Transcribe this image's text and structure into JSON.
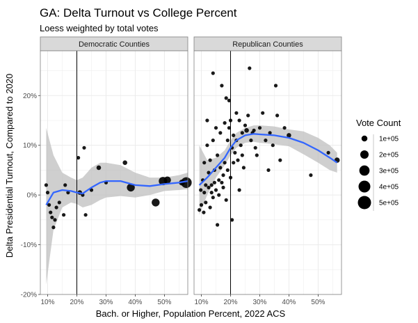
{
  "chart_data": {
    "type": "scatter",
    "title": "GA: Delta Turnout vs College Percent",
    "subtitle": "Loess weighted by total votes",
    "xlabel": "Bach. or Higher, Population Percent, 2022 ACS",
    "ylabel": "Delta Presidential Turnout, Compared to 2020",
    "xlim": [
      7.5,
      58
    ],
    "ylim": [
      -20,
      29
    ],
    "x_ticks": [
      10,
      20,
      30,
      40,
      50
    ],
    "x_tick_labels": [
      "10%",
      "20%",
      "30%",
      "40%",
      "50%"
    ],
    "y_ticks": [
      -20,
      -10,
      0,
      10,
      20
    ],
    "y_tick_labels": [
      "-20%",
      "-10%",
      "0%",
      "10%",
      "20%"
    ],
    "vline_x": 20,
    "legend": {
      "title": "Vote Count",
      "values": [
        100000,
        200000,
        300000,
        400000,
        500000
      ],
      "labels": [
        "1e+05",
        "2e+05",
        "3e+05",
        "4e+05",
        "5e+05"
      ]
    },
    "colors": {
      "points": "#000000",
      "smooth": "#3366FF",
      "ribbon": "#bfbfbf",
      "strip_bg": "#d9d9d9",
      "grid": "#ebebeb",
      "panel_border": "#7f7f7f"
    },
    "panels": [
      {
        "name": "Democratic Counties",
        "points": [
          [
            9.5,
            2.0,
            15000
          ],
          [
            10.0,
            0.5,
            12000
          ],
          [
            10.5,
            -2.0,
            15000
          ],
          [
            11.0,
            -3.5,
            10000
          ],
          [
            11.5,
            -4.5,
            10000
          ],
          [
            12.0,
            -6.5,
            10000
          ],
          [
            12.5,
            -5.0,
            10000
          ],
          [
            13.0,
            -2.5,
            12000
          ],
          [
            14.0,
            -1.5,
            12000
          ],
          [
            15.5,
            -4.0,
            12000
          ],
          [
            16.0,
            2.0,
            15000
          ],
          [
            17.0,
            0.5,
            12000
          ],
          [
            20.5,
            7.5,
            20000
          ],
          [
            21.0,
            0.5,
            60000
          ],
          [
            22.0,
            0.0,
            25000
          ],
          [
            22.5,
            9.5,
            25000
          ],
          [
            23.0,
            -4.0,
            20000
          ],
          [
            25.0,
            1.0,
            20000
          ],
          [
            27.5,
            5.5,
            60000
          ],
          [
            30.0,
            2.5,
            30000
          ],
          [
            36.5,
            6.5,
            60000
          ],
          [
            38.5,
            1.5,
            180000
          ],
          [
            47.0,
            -1.5,
            180000
          ],
          [
            49.5,
            2.8,
            200000
          ],
          [
            51.0,
            3.0,
            150000
          ],
          [
            56.0,
            2.5,
            100000
          ],
          [
            57.5,
            2.5,
            330000
          ]
        ],
        "smooth": [
          [
            9.5,
            -2.0
          ],
          [
            12,
            0.5
          ],
          [
            15,
            1.0
          ],
          [
            18,
            0.8
          ],
          [
            20,
            0.5
          ],
          [
            22,
            0.3
          ],
          [
            25,
            1.5
          ],
          [
            28,
            2.5
          ],
          [
            30,
            2.8
          ],
          [
            35,
            2.8
          ],
          [
            40,
            2.0
          ],
          [
            45,
            1.8
          ],
          [
            50,
            2.2
          ],
          [
            55,
            2.5
          ],
          [
            58,
            2.8
          ]
        ],
        "ribbon_upper": [
          [
            9.5,
            13.5
          ],
          [
            12,
            8.0
          ],
          [
            15,
            4.5
          ],
          [
            18,
            3.5
          ],
          [
            20,
            3.0
          ],
          [
            22,
            3.5
          ],
          [
            25,
            5.5
          ],
          [
            28,
            6.5
          ],
          [
            30,
            6.5
          ],
          [
            35,
            6.0
          ],
          [
            40,
            4.5
          ],
          [
            45,
            3.5
          ],
          [
            50,
            3.5
          ],
          [
            55,
            4.0
          ],
          [
            58,
            4.5
          ]
        ],
        "ribbon_lower": [
          [
            9.5,
            -18.0
          ],
          [
            12,
            -7.0
          ],
          [
            15,
            -2.5
          ],
          [
            18,
            -1.5
          ],
          [
            20,
            -1.8
          ],
          [
            22,
            -2.5
          ],
          [
            25,
            -2.0
          ],
          [
            28,
            -1.0
          ],
          [
            30,
            -0.5
          ],
          [
            35,
            -0.2
          ],
          [
            40,
            -0.5
          ],
          [
            45,
            0.0
          ],
          [
            50,
            0.8
          ],
          [
            55,
            1.0
          ],
          [
            58,
            1.2
          ]
        ]
      },
      {
        "name": "Republican Counties",
        "points": [
          [
            9.3,
            -3.0,
            10000
          ],
          [
            9.8,
            1.0,
            10000
          ],
          [
            10.0,
            -2.0,
            8000
          ],
          [
            10.5,
            3.0,
            10000
          ],
          [
            10.8,
            -3.5,
            10000
          ],
          [
            11.0,
            0.5,
            12000
          ],
          [
            11.0,
            6.5,
            10000
          ],
          [
            11.5,
            2.0,
            12000
          ],
          [
            11.5,
            -1.5,
            10000
          ],
          [
            12.0,
            15.0,
            12000
          ],
          [
            12.0,
            10.0,
            12000
          ],
          [
            12.5,
            4.5,
            12000
          ],
          [
            12.5,
            1.5,
            12000
          ],
          [
            13.0,
            7.0,
            12000
          ],
          [
            13.0,
            -2.5,
            10000
          ],
          [
            13.5,
            2.0,
            12000
          ],
          [
            13.5,
            0.5,
            12000
          ],
          [
            14.0,
            24.5,
            15000
          ],
          [
            14.0,
            11.0,
            12000
          ],
          [
            14.0,
            -0.5,
            10000
          ],
          [
            14.5,
            5.0,
            12000
          ],
          [
            14.5,
            2.5,
            12000
          ],
          [
            15.0,
            13.5,
            12000
          ],
          [
            15.0,
            1.0,
            12000
          ],
          [
            15.5,
            -6.0,
            10000
          ],
          [
            15.5,
            8.0,
            12000
          ],
          [
            16.0,
            3.0,
            12000
          ],
          [
            16.0,
            0.0,
            10000
          ],
          [
            16.5,
            5.5,
            12000
          ],
          [
            16.5,
            12.5,
            12000
          ],
          [
            17.0,
            22.0,
            15000
          ],
          [
            17.0,
            2.5,
            12000
          ],
          [
            17.5,
            1.5,
            10000
          ],
          [
            17.5,
            4.0,
            12000
          ],
          [
            18.0,
            14.5,
            12000
          ],
          [
            18.0,
            6.5,
            12000
          ],
          [
            18.5,
            19.5,
            15000
          ],
          [
            18.5,
            -1.0,
            10000
          ],
          [
            19.0,
            11.0,
            12000
          ],
          [
            19.0,
            5.0,
            12000
          ],
          [
            19.5,
            19.0,
            15000
          ],
          [
            19.5,
            13.5,
            12000
          ],
          [
            20.0,
            15.0,
            12000
          ],
          [
            20.0,
            3.5,
            12000
          ],
          [
            20.5,
            9.5,
            15000
          ],
          [
            20.5,
            -5.0,
            10000
          ],
          [
            21.0,
            12.0,
            12000
          ],
          [
            21.0,
            6.5,
            12000
          ],
          [
            21.5,
            8.5,
            12000
          ],
          [
            22.0,
            16.5,
            15000
          ],
          [
            22.0,
            11.0,
            12000
          ],
          [
            22.5,
            7.0,
            12000
          ],
          [
            23.0,
            15.0,
            15000
          ],
          [
            23.0,
            1.0,
            12000
          ],
          [
            23.5,
            10.0,
            12000
          ],
          [
            24.0,
            8.0,
            12000
          ],
          [
            24.0,
            12.5,
            12000
          ],
          [
            24.5,
            5.5,
            12000
          ],
          [
            25.0,
            14.0,
            15000
          ],
          [
            25.5,
            13.0,
            60000
          ],
          [
            26.0,
            16.0,
            15000
          ],
          [
            26.5,
            25.5,
            15000
          ],
          [
            27.0,
            11.0,
            12000
          ],
          [
            27.5,
            12.5,
            12000
          ],
          [
            28.0,
            13.0,
            15000
          ],
          [
            28.5,
            9.5,
            12000
          ],
          [
            29.0,
            8.0,
            12000
          ],
          [
            30.0,
            13.5,
            12000
          ],
          [
            31.0,
            16.5,
            15000
          ],
          [
            32.0,
            11.0,
            15000
          ],
          [
            33.0,
            5.0,
            12000
          ],
          [
            33.5,
            12.5,
            15000
          ],
          [
            34.5,
            10.0,
            15000
          ],
          [
            35.5,
            22.0,
            15000
          ],
          [
            36.0,
            16.0,
            15000
          ],
          [
            37.0,
            7.0,
            12000
          ],
          [
            38.5,
            13.5,
            15000
          ],
          [
            40.0,
            12.0,
            60000
          ],
          [
            47.5,
            4.0,
            15000
          ],
          [
            53.5,
            8.5,
            20000
          ],
          [
            56.5,
            7.0,
            80000
          ]
        ],
        "smooth": [
          [
            9.3,
            2.0
          ],
          [
            12,
            3.5
          ],
          [
            15,
            5.5
          ],
          [
            18,
            7.5
          ],
          [
            20,
            9.5
          ],
          [
            22,
            11.0
          ],
          [
            25,
            12.0
          ],
          [
            28,
            12.3
          ],
          [
            30,
            12.2
          ],
          [
            35,
            12.0
          ],
          [
            40,
            11.5
          ],
          [
            45,
            10.5
          ],
          [
            50,
            9.0
          ],
          [
            54,
            7.5
          ],
          [
            56.5,
            6.5
          ]
        ],
        "ribbon_upper": [
          [
            9.3,
            10.0
          ],
          [
            12,
            7.0
          ],
          [
            15,
            7.5
          ],
          [
            18,
            9.0
          ],
          [
            20,
            11.0
          ],
          [
            22,
            12.5
          ],
          [
            25,
            13.5
          ],
          [
            28,
            14.0
          ],
          [
            30,
            14.0
          ],
          [
            35,
            13.8
          ],
          [
            40,
            13.2
          ],
          [
            45,
            12.8
          ],
          [
            50,
            11.5
          ],
          [
            54,
            10.0
          ],
          [
            56.5,
            8.5
          ]
        ],
        "ribbon_lower": [
          [
            9.3,
            -4.0
          ],
          [
            12,
            0.0
          ],
          [
            15,
            3.5
          ],
          [
            18,
            6.0
          ],
          [
            20,
            8.0
          ],
          [
            22,
            9.5
          ],
          [
            25,
            10.5
          ],
          [
            28,
            10.7
          ],
          [
            30,
            10.5
          ],
          [
            35,
            10.2
          ],
          [
            40,
            9.8
          ],
          [
            45,
            8.2
          ],
          [
            50,
            6.5
          ],
          [
            54,
            5.0
          ],
          [
            56.5,
            4.5
          ]
        ]
      }
    ]
  }
}
